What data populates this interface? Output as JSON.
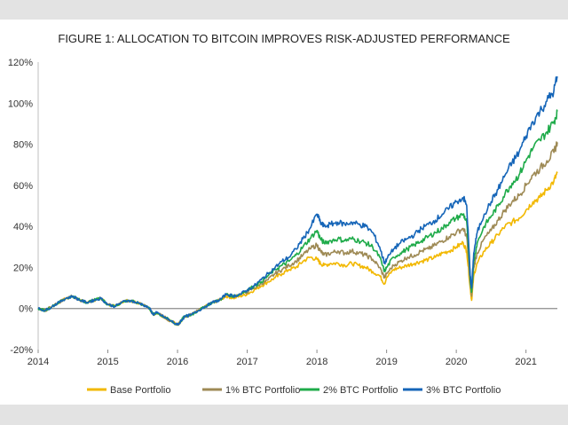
{
  "chart_data": {
    "type": "line",
    "title": "FIGURE 1: ALLOCATION TO BITCOIN IMPROVES RISK-ADJUSTED PERFORMANCE",
    "xlabel": "",
    "ylabel": "",
    "xlim": [
      2014.0,
      2021.45
    ],
    "ylim": [
      -20,
      120
    ],
    "x_ticks": [
      "2014",
      "2015",
      "2016",
      "2017",
      "2018",
      "2019",
      "2020",
      "2021"
    ],
    "y_ticks": [
      "120%",
      "100%",
      "80%",
      "60%",
      "40%",
      "20%",
      "0%",
      "-20%"
    ],
    "y_tick_values": [
      120,
      100,
      80,
      60,
      40,
      20,
      0,
      -20
    ],
    "x": [
      2014.0,
      2014.1,
      2014.2,
      2014.3,
      2014.4,
      2014.5,
      2014.6,
      2014.7,
      2014.8,
      2014.9,
      2015.0,
      2015.1,
      2015.2,
      2015.3,
      2015.4,
      2015.5,
      2015.6,
      2015.65,
      2015.7,
      2015.8,
      2015.9,
      2016.0,
      2016.05,
      2016.1,
      2016.2,
      2016.3,
      2016.4,
      2016.5,
      2016.6,
      2016.7,
      2016.8,
      2016.9,
      2017.0,
      2017.1,
      2017.2,
      2017.3,
      2017.4,
      2017.5,
      2017.6,
      2017.7,
      2017.8,
      2017.9,
      2018.0,
      2018.05,
      2018.1,
      2018.2,
      2018.3,
      2018.4,
      2018.5,
      2018.6,
      2018.7,
      2018.8,
      2018.9,
      2018.97,
      2019.0,
      2019.1,
      2019.2,
      2019.3,
      2019.4,
      2019.5,
      2019.6,
      2019.7,
      2019.8,
      2019.9,
      2020.0,
      2020.1,
      2020.15,
      2020.2,
      2020.22,
      2020.25,
      2020.3,
      2020.4,
      2020.5,
      2020.6,
      2020.7,
      2020.8,
      2020.9,
      2021.0,
      2021.1,
      2021.2,
      2021.3,
      2021.4,
      2021.45
    ],
    "series": [
      {
        "name": "Base Portfolio",
        "color": "#f2b800",
        "values": [
          0,
          -1,
          1,
          3,
          5,
          6,
          4,
          3,
          4,
          5,
          2,
          1,
          3,
          4,
          3,
          2,
          0,
          -3,
          -2,
          -4,
          -6,
          -8,
          -6,
          -4,
          -3,
          -1,
          1,
          3,
          4,
          6,
          5,
          6,
          7,
          9,
          11,
          13,
          15,
          17,
          19,
          20,
          23,
          25,
          24,
          22,
          21,
          22,
          22,
          21,
          22,
          21,
          20,
          18,
          16,
          12,
          15,
          19,
          20,
          21,
          22,
          23,
          24,
          25,
          27,
          28,
          30,
          32,
          28,
          10,
          4,
          16,
          22,
          28,
          32,
          36,
          40,
          42,
          44,
          48,
          52,
          54,
          58,
          62,
          66
        ]
      },
      {
        "name": "1% BTC Portfolio",
        "color": "#9e8a55",
        "values": [
          0,
          -1,
          1,
          3,
          5,
          6,
          4,
          3,
          4,
          5,
          2,
          1,
          3,
          4,
          3,
          2,
          0,
          -3,
          -2,
          -4,
          -6,
          -8,
          -6,
          -4,
          -3,
          -1,
          1,
          3,
          4,
          7,
          6,
          7,
          8,
          10,
          12,
          14,
          17,
          19,
          21,
          23,
          26,
          29,
          31,
          28,
          26,
          27,
          28,
          27,
          28,
          27,
          26,
          24,
          20,
          15,
          17,
          21,
          23,
          25,
          26,
          28,
          29,
          31,
          33,
          35,
          37,
          39,
          35,
          12,
          6,
          20,
          27,
          34,
          38,
          43,
          48,
          52,
          55,
          60,
          65,
          68,
          72,
          76,
          81
        ]
      },
      {
        "name": "2% BTC Portfolio",
        "color": "#1fab4a",
        "values": [
          0,
          -1,
          1,
          3,
          5,
          6,
          4,
          3,
          4,
          5,
          2,
          1,
          3,
          4,
          3,
          2,
          0,
          -3,
          -2,
          -4,
          -6,
          -8,
          -6,
          -4,
          -3,
          -1,
          1,
          3,
          4,
          7,
          6,
          7,
          9,
          11,
          13,
          16,
          19,
          21,
          23,
          26,
          30,
          34,
          38,
          34,
          32,
          33,
          34,
          33,
          34,
          33,
          32,
          30,
          25,
          18,
          20,
          25,
          27,
          29,
          31,
          33,
          35,
          37,
          39,
          42,
          44,
          46,
          42,
          14,
          8,
          23,
          32,
          40,
          45,
          50,
          56,
          61,
          65,
          72,
          78,
          82,
          86,
          91,
          96
        ]
      },
      {
        "name": "3% BTC Portfolio",
        "color": "#1565b8",
        "values": [
          0,
          -1,
          1,
          3,
          5,
          6,
          4,
          3,
          4,
          5,
          2,
          1,
          3,
          4,
          3,
          2,
          0,
          -3,
          -2,
          -4,
          -6,
          -8,
          -6,
          -4,
          -3,
          -1,
          1,
          3,
          4,
          7,
          6,
          7,
          9,
          11,
          14,
          17,
          20,
          23,
          25,
          29,
          34,
          39,
          46,
          42,
          40,
          41,
          42,
          41,
          42,
          41,
          40,
          37,
          30,
          22,
          24,
          29,
          32,
          34,
          36,
          39,
          41,
          43,
          46,
          49,
          52,
          54,
          50,
          16,
          10,
          27,
          37,
          46,
          52,
          58,
          65,
          71,
          76,
          84,
          91,
          96,
          101,
          106,
          113
        ]
      }
    ],
    "legend": "bottom",
    "grid": false
  }
}
